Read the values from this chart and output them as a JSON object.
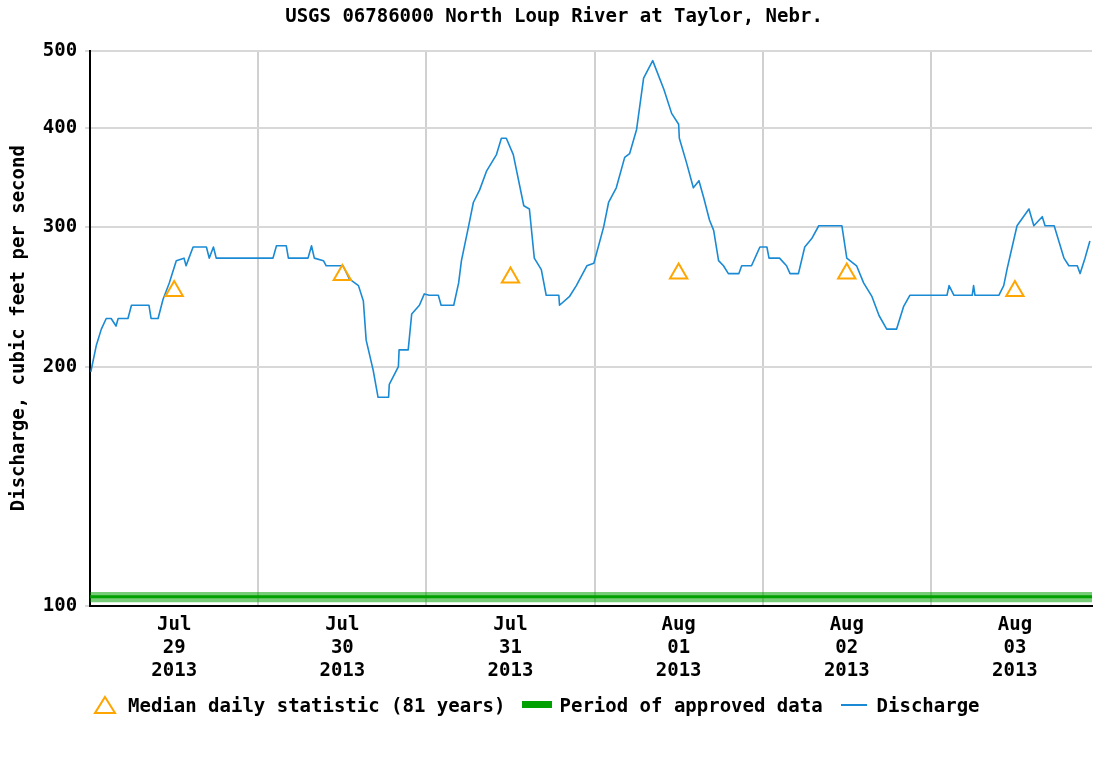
{
  "chart_data": {
    "type": "line",
    "title": "USGS 06786000 North Loup River at Taylor, Nebr.",
    "ylabel": "Discharge, cubic feet per second",
    "log": "y",
    "grid": true,
    "legend": "bottom",
    "xlim": [
      "2013-07-29T00:00",
      "2013-08-03T23:00"
    ],
    "ylim": [
      100,
      500
    ],
    "yticks": [
      100,
      200,
      300,
      400,
      500
    ],
    "xticks": [
      {
        "value": "2013-07-29T12:00",
        "label": "Jul\n29\n2013"
      },
      {
        "value": "2013-07-30T00:00",
        "label": null
      },
      {
        "value": "2013-07-30T12:00",
        "label": "Jul\n30\n2013"
      },
      {
        "value": "2013-07-31T00:00",
        "label": null
      },
      {
        "value": "2013-07-31T12:00",
        "label": "Jul\n31\n2013"
      },
      {
        "value": "2013-08-01T00:00",
        "label": null
      },
      {
        "value": "2013-08-01T12:00",
        "label": "Aug\n01\n2013"
      },
      {
        "value": "2013-08-02T00:00",
        "label": null
      },
      {
        "value": "2013-08-02T12:00",
        "label": "Aug\n02\n2013"
      },
      {
        "value": "2013-08-03T00:00",
        "label": null
      },
      {
        "value": "2013-08-03T12:00",
        "label": "Aug\n03\n2013"
      }
    ],
    "series": [
      {
        "name": "Period of approved data",
        "type": "line",
        "marker": "none",
        "color": "#00a000",
        "x": [
          "2013-07-29T00:00",
          "2013-08-03T23:00"
        ],
        "values": [
          102.6,
          102.6
        ],
        "lower": [
          101,
          101
        ],
        "upper": [
          104,
          104
        ]
      },
      {
        "name": "Median daily statistic (81 years)",
        "type": "scatter",
        "marker": "triangle",
        "color": "#ffa500",
        "x": [
          "2013-07-29T12:00",
          "2013-07-30T12:00",
          "2013-07-31T12:00",
          "2013-08-01T12:00",
          "2013-08-02T12:00",
          "2013-08-03T12:00"
        ],
        "values": [
          249,
          261,
          259,
          262,
          262,
          249
        ]
      },
      {
        "name": "Discharge",
        "type": "line",
        "marker": "none",
        "color": "#1a8ad4",
        "x": [
          "2013-07-29T00:06",
          "2013-07-29T00:54",
          "2013-07-29T01:36",
          "2013-07-29T02:18",
          "2013-07-29T03:00",
          "2013-07-29T03:42",
          "2013-07-29T04:00",
          "2013-07-29T05:24",
          "2013-07-29T05:54",
          "2013-07-29T08:24",
          "2013-07-29T08:42",
          "2013-07-29T09:42",
          "2013-07-29T10:24",
          "2013-07-29T11:18",
          "2013-07-29T12:18",
          "2013-07-29T13:24",
          "2013-07-29T13:42",
          "2013-07-29T14:06",
          "2013-07-29T14:42",
          "2013-07-29T16:36",
          "2013-07-29T17:00",
          "2013-07-29T17:36",
          "2013-07-29T18:00",
          "2013-07-30T02:06",
          "2013-07-30T02:36",
          "2013-07-30T04:00",
          "2013-07-30T04:18",
          "2013-07-30T07:06",
          "2013-07-30T07:36",
          "2013-07-30T08:00",
          "2013-07-30T09:18",
          "2013-07-30T09:42",
          "2013-07-30T12:06",
          "2013-07-30T13:00",
          "2013-07-30T14:18",
          "2013-07-30T15:00",
          "2013-07-30T15:24",
          "2013-07-30T16:24",
          "2013-07-30T17:06",
          "2013-07-30T18:36",
          "2013-07-30T18:42",
          "2013-07-30T20:00",
          "2013-07-30T20:06",
          "2013-07-30T21:24",
          "2013-07-30T21:54",
          "2013-07-30T23:00",
          "2013-07-30T23:42",
          "2013-07-31T00:24",
          "2013-07-31T01:42",
          "2013-07-31T02:06",
          "2013-07-31T03:54",
          "2013-07-31T04:36",
          "2013-07-31T05:00",
          "2013-07-31T06:00",
          "2013-07-31T06:42",
          "2013-07-31T07:36",
          "2013-07-31T08:36",
          "2013-07-31T10:00",
          "2013-07-31T10:42",
          "2013-07-31T11:24",
          "2013-07-31T12:24",
          "2013-07-31T13:54",
          "2013-07-31T14:42",
          "2013-07-31T15:24",
          "2013-07-31T16:24",
          "2013-07-31T17:06",
          "2013-07-31T18:54",
          "2013-07-31T19:00",
          "2013-07-31T20:24",
          "2013-07-31T21:24",
          "2013-07-31T22:54",
          "2013-07-31T23:54",
          "2013-08-01T01:18",
          "2013-08-01T02:00",
          "2013-08-01T03:06",
          "2013-08-01T04:18",
          "2013-08-01T05:00",
          "2013-08-01T06:00",
          "2013-08-01T07:00",
          "2013-08-01T08:18",
          "2013-08-01T09:54",
          "2013-08-01T11:00",
          "2013-08-01T12:00",
          "2013-08-01T12:06",
          "2013-08-01T13:06",
          "2013-08-01T14:06",
          "2013-08-01T14:54",
          "2013-08-01T15:36",
          "2013-08-01T16:24",
          "2013-08-01T17:00",
          "2013-08-01T17:42",
          "2013-08-01T18:24",
          "2013-08-01T19:06",
          "2013-08-01T20:36",
          "2013-08-01T21:00",
          "2013-08-01T22:24",
          "2013-08-01T23:36",
          "2013-08-02T00:36",
          "2013-08-02T00:54",
          "2013-08-02T02:24",
          "2013-08-02T03:24",
          "2013-08-02T03:54",
          "2013-08-02T05:06",
          "2013-08-02T06:00",
          "2013-08-02T07:00",
          "2013-08-02T08:00",
          "2013-08-02T11:18",
          "2013-08-02T12:00",
          "2013-08-02T13:24",
          "2013-08-02T14:24",
          "2013-08-02T15:36",
          "2013-08-02T16:36",
          "2013-08-02T17:42",
          "2013-08-02T19:06",
          "2013-08-02T20:06",
          "2013-08-02T21:00",
          "2013-08-03T02:18",
          "2013-08-03T02:36",
          "2013-08-03T03:18",
          "2013-08-03T05:54",
          "2013-08-03T06:06",
          "2013-08-03T06:18",
          "2013-08-03T09:42",
          "2013-08-03T10:24",
          "2013-08-03T10:54",
          "2013-08-03T12:18",
          "2013-08-03T14:00",
          "2013-08-03T14:42",
          "2013-08-03T15:54",
          "2013-08-03T16:18",
          "2013-08-03T17:36",
          "2013-08-03T19:00",
          "2013-08-03T19:42",
          "2013-08-03T20:54",
          "2013-08-03T21:18",
          "2013-08-03T22:00",
          "2013-08-03T22:42"
        ],
        "values": [
          197,
          213,
          223,
          230,
          230,
          225,
          230,
          230,
          239,
          239,
          230,
          230,
          243,
          255,
          272,
          274,
          268,
          274,
          283,
          283,
          274,
          283,
          274,
          274,
          284,
          284,
          274,
          274,
          284,
          274,
          272,
          268,
          268,
          258,
          253,
          242,
          216,
          198,
          183,
          183,
          190,
          200,
          210,
          210,
          233,
          239,
          247,
          246,
          246,
          239,
          239,
          255,
          272,
          300,
          322,
          334,
          353,
          370,
          388,
          388,
          370,
          319,
          316,
          274,
          265,
          246,
          246,
          239,
          245,
          253,
          268,
          270,
          300,
          322,
          336,
          367,
          371,
          398,
          462,
          486,
          447,
          417,
          404,
          388,
          362,
          336,
          343,
          326,
          306,
          297,
          272,
          268,
          262,
          262,
          268,
          268,
          283,
          283,
          274,
          274,
          268,
          262,
          262,
          283,
          290,
          301,
          301,
          274,
          268,
          255,
          245,
          232,
          223,
          223,
          238,
          246,
          246,
          253,
          246,
          246,
          253,
          246,
          246,
          253,
          266,
          301,
          316,
          301,
          309,
          301,
          301,
          274,
          268,
          268,
          262,
          274,
          288
        ]
      }
    ]
  }
}
